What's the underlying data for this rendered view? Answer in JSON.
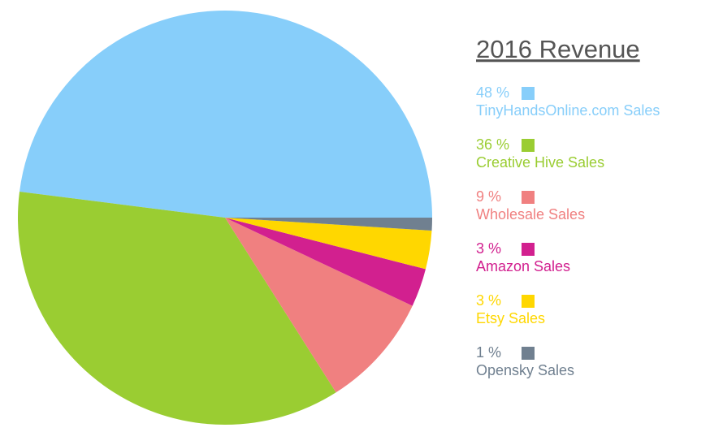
{
  "chart_data": {
    "type": "pie",
    "title": "2016 Revenue",
    "categories": [
      "TinyHandsOnline.com Sales",
      "Creative Hive Sales",
      "Wholesale Sales",
      "Amazon Sales",
      "Etsy Sales",
      "Opensky Sales"
    ],
    "values": [
      48,
      36,
      9,
      3,
      3,
      1
    ],
    "value_labels": [
      "48 %",
      "36 %",
      "9 %",
      "3 %",
      "3 %",
      "1 %"
    ],
    "colors": [
      "#87cefa",
      "#9acd32",
      "#f08080",
      "#d2208f",
      "#ffd700",
      "#708090"
    ]
  }
}
